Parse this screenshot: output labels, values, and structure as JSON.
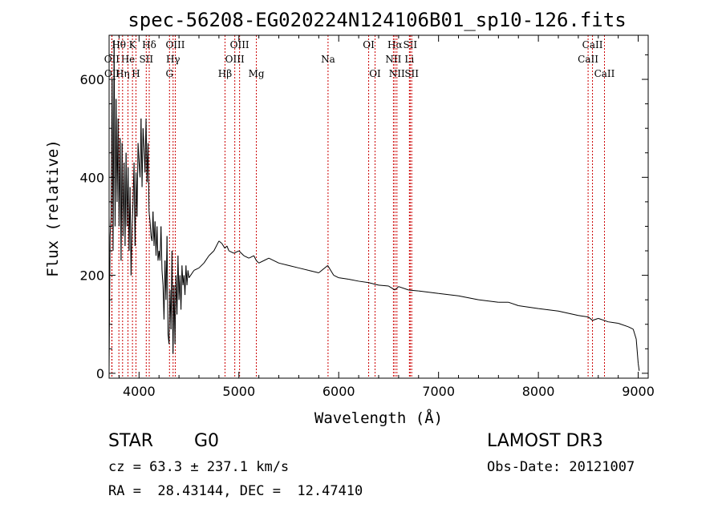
{
  "chart_data": {
    "type": "line",
    "title": "spec-56208-EG020224N124106B01_sp10-126.fits",
    "xlabel": "Wavelength (Å)",
    "ylabel": "Flux (relative)",
    "xlim": [
      3700,
      9100
    ],
    "ylim": [
      -10,
      690
    ],
    "x_ticks": [
      4000,
      5000,
      6000,
      7000,
      8000,
      9000
    ],
    "y_ticks": [
      0,
      200,
      400,
      600
    ],
    "x_tick_labels": [
      "4000",
      "5000",
      "6000",
      "7000",
      "8000",
      "9000"
    ],
    "y_tick_labels": [
      "0",
      "200",
      "400",
      "600"
    ],
    "grid": false,
    "series": [
      {
        "name": "spectrum",
        "x": [
          3700,
          3710,
          3720,
          3730,
          3740,
          3750,
          3760,
          3770,
          3780,
          3790,
          3800,
          3810,
          3820,
          3830,
          3840,
          3850,
          3860,
          3870,
          3880,
          3890,
          3900,
          3910,
          3920,
          3930,
          3940,
          3950,
          3960,
          3970,
          3980,
          3990,
          4000,
          4010,
          4020,
          4030,
          4040,
          4050,
          4060,
          4070,
          4080,
          4090,
          4100,
          4110,
          4120,
          4130,
          4140,
          4150,
          4160,
          4170,
          4180,
          4190,
          4200,
          4210,
          4220,
          4230,
          4240,
          4250,
          4260,
          4270,
          4280,
          4290,
          4300,
          4310,
          4320,
          4330,
          4340,
          4350,
          4360,
          4370,
          4380,
          4390,
          4400,
          4410,
          4420,
          4430,
          4440,
          4450,
          4460,
          4470,
          4480,
          4490,
          4500,
          4550,
          4600,
          4650,
          4700,
          4750,
          4800,
          4830,
          4860,
          4880,
          4900,
          4950,
          5000,
          5050,
          5100,
          5150,
          5175,
          5200,
          5250,
          5300,
          5400,
          5500,
          5600,
          5700,
          5800,
          5890,
          5950,
          6000,
          6100,
          6200,
          6300,
          6400,
          6500,
          6563,
          6600,
          6700,
          6800,
          7000,
          7200,
          7400,
          7600,
          7700,
          7800,
          8000,
          8200,
          8400,
          8500,
          8542,
          8600,
          8700,
          8800,
          8900,
          8950,
          8980,
          9000,
          9010
        ],
        "values": [
          10,
          280,
          320,
          600,
          250,
          680,
          300,
          560,
          350,
          520,
          300,
          480,
          230,
          470,
          280,
          430,
          260,
          450,
          300,
          420,
          250,
          380,
          200,
          300,
          350,
          430,
          260,
          410,
          320,
          470,
          430,
          400,
          520,
          380,
          500,
          460,
          410,
          520,
          390,
          470,
          330,
          310,
          280,
          270,
          330,
          260,
          310,
          240,
          300,
          230,
          250,
          230,
          300,
          210,
          180,
          110,
          230,
          150,
          280,
          80,
          60,
          170,
          90,
          250,
          40,
          180,
          60,
          200,
          120,
          240,
          150,
          200,
          130,
          220,
          180,
          200,
          160,
          220,
          180,
          210,
          195,
          210,
          215,
          225,
          240,
          250,
          270,
          265,
          255,
          260,
          250,
          245,
          250,
          240,
          235,
          240,
          230,
          225,
          230,
          235,
          225,
          220,
          215,
          210,
          205,
          220,
          200,
          195,
          192,
          188,
          185,
          180,
          178,
          170,
          177,
          170,
          168,
          163,
          158,
          150,
          145,
          145,
          138,
          132,
          127,
          118,
          115,
          108,
          112,
          105,
          102,
          95,
          90,
          70,
          20,
          5
        ]
      }
    ],
    "line_markers": [
      {
        "label": "Hθ",
        "x": 3798,
        "row": 0
      },
      {
        "label": "OII",
        "x": 3727,
        "row": 1
      },
      {
        "label": "OII",
        "x": 3729,
        "row": 2
      },
      {
        "label": "He",
        "x": 3889,
        "row": 1
      },
      {
        "label": "Hη",
        "x": 3835,
        "row": 2
      },
      {
        "label": "K",
        "x": 3934,
        "row": 0
      },
      {
        "label": "SII",
        "x": 4072,
        "row": 1
      },
      {
        "label": "H",
        "x": 3969,
        "row": 2
      },
      {
        "label": "Hδ",
        "x": 4102,
        "row": 0
      },
      {
        "label": "OIII",
        "x": 4363,
        "row": 0
      },
      {
        "label": "Hγ",
        "x": 4341,
        "row": 1
      },
      {
        "label": "G",
        "x": 4305,
        "row": 2
      },
      {
        "label": "Hβ",
        "x": 4861,
        "row": 2
      },
      {
        "label": "OIII",
        "x": 5007,
        "row": 0
      },
      {
        "label": "OIII",
        "x": 4959,
        "row": 1
      },
      {
        "label": "Mg",
        "x": 5175,
        "row": 2
      },
      {
        "label": "Na",
        "x": 5893,
        "row": 1
      },
      {
        "label": "OI",
        "x": 6300,
        "row": 0
      },
      {
        "label": "OI",
        "x": 6364,
        "row": 2
      },
      {
        "label": "Hα",
        "x": 6563,
        "row": 0
      },
      {
        "label": "NII",
        "x": 6548,
        "row": 1
      },
      {
        "label": "NII",
        "x": 6583,
        "row": 2
      },
      {
        "label": "SII",
        "x": 6716,
        "row": 0
      },
      {
        "label": "Li",
        "x": 6708,
        "row": 1
      },
      {
        "label": "SII",
        "x": 6731,
        "row": 2
      },
      {
        "label": "CaII",
        "x": 8542,
        "row": 0
      },
      {
        "label": "CaII",
        "x": 8498,
        "row": 1
      },
      {
        "label": "CaII",
        "x": 8662,
        "row": 2
      }
    ]
  },
  "info": {
    "class_label": "STAR",
    "subclass_label": "G0",
    "survey_label": "LAMOST DR3",
    "redshift_line": "cz = 63.3 ± 237.1 km/s",
    "obs_date_line": "Obs-Date: 20121007",
    "coords_line": "RA =  28.43144, DEC =  12.47410"
  },
  "colors": {
    "spectrum": "#000000",
    "marker_line": "#cc0000",
    "axes": "#000000",
    "background": "#ffffff"
  }
}
